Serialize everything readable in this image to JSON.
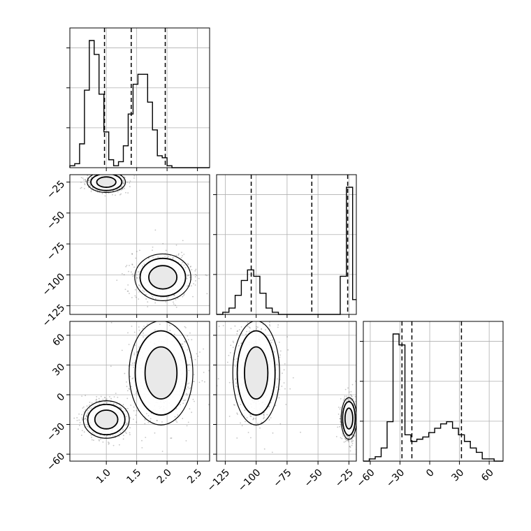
{
  "chart_data": {
    "type": "corner",
    "parameters": [
      {
        "label": "",
        "range": [
          0.4,
          2.7
        ]
      },
      {
        "label": "",
        "range": [
          -132,
          -19
        ]
      },
      {
        "label": "",
        "range": [
          -67,
          74
        ]
      }
    ],
    "grid": true,
    "panels": [
      {
        "type": "histogram",
        "param": 0,
        "bins": [
          0.4,
          0.48,
          0.56,
          0.64,
          0.72,
          0.8,
          0.88,
          0.96,
          1.04,
          1.12,
          1.2,
          1.28,
          1.36,
          1.44,
          1.52,
          1.6,
          1.68,
          1.76,
          1.84,
          1.92,
          2.0,
          2.08,
          2.16,
          2.24,
          2.32,
          2.4,
          2.48,
          2.56,
          2.64,
          2.7
        ],
        "counts": [
          1,
          2,
          12,
          39,
          64,
          57,
          37,
          18,
          4,
          1,
          3,
          11,
          27,
          42,
          47,
          47,
          33,
          19,
          6,
          5,
          1,
          0,
          0,
          0,
          0,
          0,
          0,
          0,
          0
        ],
        "quantiles": [
          0.97,
          1.41,
          1.97
        ]
      },
      {
        "type": "histogram",
        "param": 1,
        "bins": [
          -132,
          -127,
          -122,
          -117,
          -112,
          -107,
          -102,
          -97,
          -92,
          -87,
          -82,
          -77,
          -72,
          -67,
          -62,
          -57,
          -52,
          -47,
          -42,
          -37,
          -32,
          -27,
          -22,
          -19
        ],
        "counts": [
          0,
          1,
          3,
          9,
          16,
          21,
          18,
          10,
          3,
          1,
          0,
          0,
          0,
          0,
          0,
          0,
          0,
          0,
          0,
          0,
          18,
          60,
          7
        ],
        "quantiles": [
          -104,
          -55,
          -26
        ]
      },
      {
        "type": "histogram",
        "param": 2,
        "bins": [
          -67,
          -61,
          -55,
          -49,
          -43,
          -37,
          -31,
          -25,
          -19,
          -13,
          -7,
          -1,
          5,
          11,
          17,
          23,
          29,
          35,
          41,
          47,
          53,
          59,
          65,
          71,
          74
        ],
        "counts": [
          0,
          1,
          2,
          6,
          18,
          58,
          53,
          12,
          9,
          10,
          11,
          13,
          15,
          17,
          18,
          15,
          12,
          9,
          6,
          4,
          1,
          1,
          0,
          0
        ],
        "quantiles": [
          -28,
          -18,
          32
        ]
      },
      {
        "type": "contour",
        "x_param": 0,
        "y_param": 1,
        "modes": [
          {
            "center": [
              1.0,
              -25
            ],
            "spread": [
              0.15,
              4
            ]
          },
          {
            "center": [
              1.93,
              -102
            ],
            "spread": [
              0.22,
              9
            ]
          }
        ]
      },
      {
        "type": "contour",
        "x_param": 0,
        "y_param": 2,
        "modes": [
          {
            "center": [
              1.0,
              -25
            ],
            "spread": [
              0.18,
              9
            ]
          },
          {
            "center": [
              1.9,
              22
            ],
            "spread": [
              0.25,
              25
            ]
          }
        ]
      },
      {
        "type": "contour",
        "x_param": 1,
        "y_param": 2,
        "modes": [
          {
            "center": [
              -100,
              22
            ],
            "spread": [
              9,
              25
            ]
          },
          {
            "center": [
              -25,
              -24
            ],
            "spread": [
              3,
              10
            ]
          }
        ]
      }
    ],
    "axis_ticks": {
      "col0_x": [
        "1.0",
        "1.5",
        "2.0",
        "2.5"
      ],
      "col1_x": [
        "−125",
        "−100",
        "−75",
        "−50",
        "−25"
      ],
      "col2_x": [
        "−60",
        "−30",
        "0",
        "30",
        "60"
      ],
      "row1_y": [
        "−25",
        "−50",
        "−75",
        "−100",
        "−125"
      ],
      "row2_y": [
        "60",
        "30",
        "0",
        "−30",
        "−60"
      ]
    }
  }
}
